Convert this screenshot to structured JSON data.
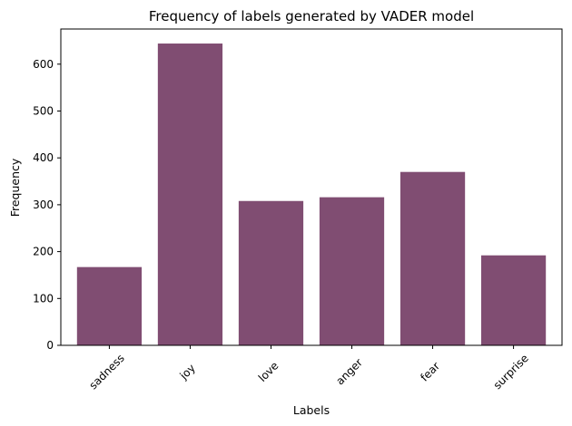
{
  "chart_data": {
    "type": "bar",
    "title": "Frequency of labels generated by VADER model",
    "xlabel": "Labels",
    "ylabel": "Frequency",
    "categories": [
      "sadness",
      "joy",
      "love",
      "anger",
      "fear",
      "surprise"
    ],
    "values": [
      167,
      644,
      308,
      316,
      370,
      192
    ],
    "ylim": [
      0,
      675
    ],
    "yticks": [
      0,
      100,
      200,
      300,
      400,
      500,
      600
    ],
    "bar_color": "#804d72",
    "grid": false,
    "legend": "none"
  }
}
